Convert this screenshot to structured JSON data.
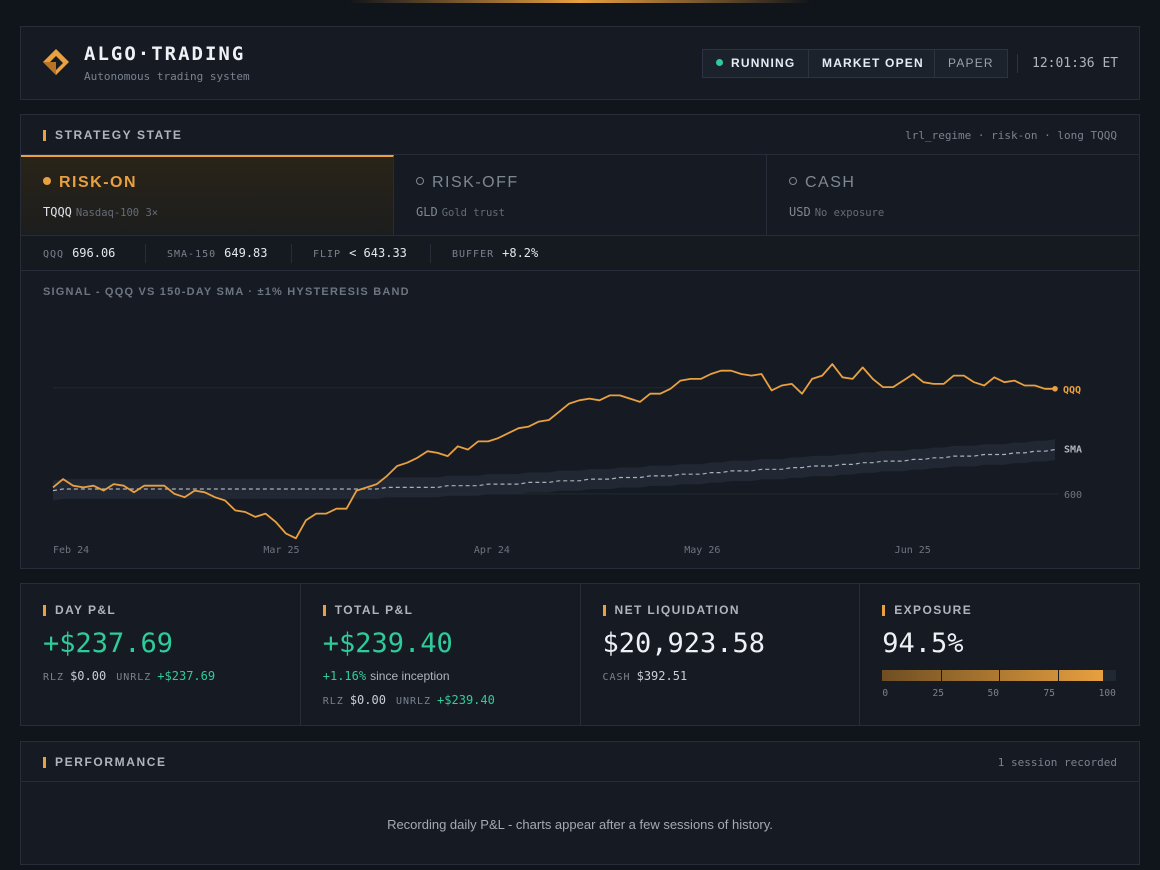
{
  "header": {
    "title": "ALGO·TRADING",
    "subtitle": "Autonomous trading system",
    "status_running": "RUNNING",
    "status_market": "MARKET OPEN",
    "status_mode": "PAPER",
    "clock": "12:01:36 ET",
    "colors": {
      "accent": "#e8a040",
      "positive": "#2ecc9a"
    }
  },
  "strategy": {
    "title": "STRATEGY STATE",
    "context": "lrl_regime · risk-on · long TQQQ",
    "states": [
      {
        "name": "RISK-ON",
        "ticker": "TQQQ",
        "desc": "Nasdaq-100 3×",
        "active": true
      },
      {
        "name": "RISK-OFF",
        "ticker": "GLD",
        "desc": "Gold trust",
        "active": false
      },
      {
        "name": "CASH",
        "ticker": "USD",
        "desc": "No exposure",
        "active": false
      }
    ],
    "metrics": {
      "qqq_label": "QQQ",
      "qqq_value": "696.06",
      "sma_label": "SMA-150",
      "sma_value": "649.83",
      "flip_label": "FLIP",
      "flip_value": "< 643.33",
      "buffer_label": "BUFFER",
      "buffer_value": "+8.2%"
    },
    "chart_title": "SIGNAL - QQQ VS 150-DAY SMA · ±1% HYSTERESIS BAND"
  },
  "chart_data": {
    "type": "line",
    "x_ticks": [
      "Feb 24",
      "Mar 25",
      "Apr 24",
      "May 26",
      "Jun 25"
    ],
    "y_ticks": [
      600
    ],
    "ylim": [
      575,
      715
    ],
    "band_pct": 1,
    "series": [
      {
        "name": "QQQ",
        "color": "#e8a040",
        "values": [
          604,
          609,
          605,
          604,
          605,
          602,
          606,
          605,
          601,
          605,
          605,
          605,
          600,
          598,
          602,
          601,
          598,
          596,
          590,
          589,
          586,
          588,
          583,
          576,
          573,
          584,
          588,
          588,
          591,
          591,
          602,
          604,
          606,
          611,
          617,
          619,
          622,
          626,
          625,
          623,
          629,
          627,
          632,
          632,
          634,
          637,
          640,
          641,
          644,
          645,
          650,
          655,
          657,
          658,
          657,
          660,
          660,
          658,
          656,
          661,
          661,
          664,
          669,
          670,
          670,
          673,
          675,
          675,
          673,
          672,
          673,
          663,
          666,
          667,
          661,
          670,
          672,
          679,
          671,
          670,
          677,
          670,
          665,
          665,
          669,
          673,
          668,
          667,
          667,
          672,
          672,
          668,
          666,
          671,
          668,
          669,
          666,
          666,
          664,
          664
        ]
      },
      {
        "name": "SMA",
        "color": "#aab0ba",
        "values": [
          602,
          603,
          603,
          603,
          603,
          603,
          603,
          603,
          603,
          603,
          603,
          603,
          603,
          603,
          603,
          603,
          603,
          603,
          603,
          603,
          603,
          603,
          603,
          603,
          603,
          603,
          603,
          603,
          603,
          603,
          603,
          603,
          603,
          604,
          604,
          604,
          604,
          604,
          604,
          605,
          605,
          605,
          605,
          606,
          606,
          606,
          606,
          607,
          607,
          607,
          608,
          608,
          608,
          609,
          609,
          609,
          610,
          610,
          610,
          611,
          611,
          611,
          612,
          612,
          612,
          613,
          613,
          614,
          614,
          614,
          615,
          615,
          615,
          616,
          616,
          617,
          617,
          617,
          618,
          618,
          619,
          619,
          620,
          620,
          620,
          621,
          621,
          622,
          622,
          623,
          623,
          623,
          624,
          624,
          624,
          625,
          625,
          626,
          626,
          627
        ]
      }
    ]
  },
  "stats": {
    "day_pnl": {
      "label": "DAY P&L",
      "value": "+$237.69",
      "rlz_label": "RLZ",
      "rlz": "$0.00",
      "unrlz_label": "UNRLZ",
      "unrlz": "+$237.69"
    },
    "total_pnl": {
      "label": "TOTAL P&L",
      "value": "+$239.40",
      "pct": "+1.16%",
      "since": "since inception",
      "rlz_label": "RLZ",
      "rlz": "$0.00",
      "unrlz_label": "UNRLZ",
      "unrlz": "+$239.40"
    },
    "net_liq": {
      "label": "NET LIQUIDATION",
      "value": "$20,923.58",
      "cash_label": "CASH",
      "cash": "$392.51"
    },
    "exposure": {
      "label": "EXPOSURE",
      "value": "94.5%",
      "fraction": 0.945,
      "scale": [
        "0",
        "25",
        "50",
        "75",
        "100"
      ]
    }
  },
  "performance": {
    "title": "PERFORMANCE",
    "sessions": "1 session recorded",
    "message": "Recording daily P&L - charts appear after a few sessions of history."
  }
}
